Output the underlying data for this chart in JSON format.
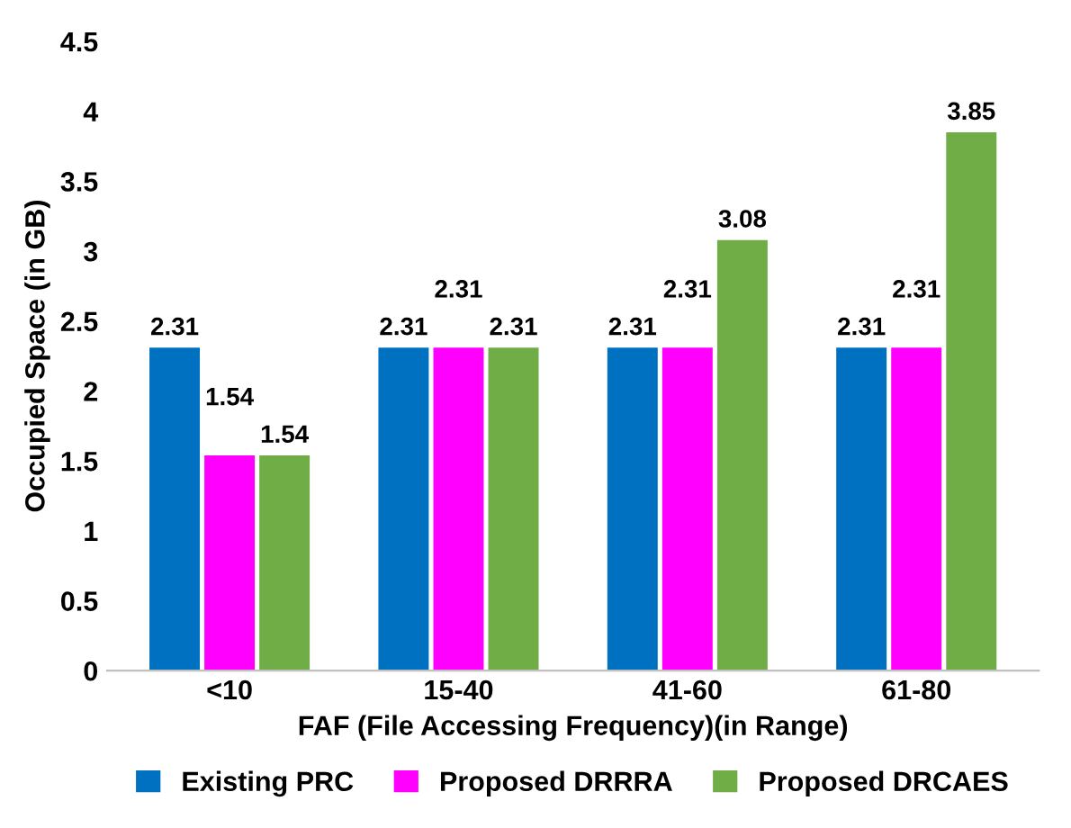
{
  "chart_data": {
    "type": "bar",
    "xlabel": "FAF (File Accessing Frequency)(in Range)",
    "ylabel": "Occupied Space (in GB)",
    "categories": [
      "<10",
      "15-40",
      "41-60",
      "61-80"
    ],
    "series": [
      {
        "name": "Existing PRC",
        "color": "#0070c0",
        "values": [
          2.31,
          2.31,
          2.31,
          2.31
        ]
      },
      {
        "name": "Proposed DRRRA",
        "color": "#ff00ff",
        "values": [
          1.54,
          2.31,
          2.31,
          2.31
        ]
      },
      {
        "name": "Proposed DRCAES",
        "color": "#70ad47",
        "values": [
          1.54,
          2.31,
          3.08,
          3.85
        ]
      }
    ],
    "ylim": [
      0,
      4.5
    ],
    "yticks": [
      0,
      0.5,
      1,
      1.5,
      2,
      2.5,
      3,
      3.5,
      4,
      4.5
    ],
    "grid": false,
    "legend": "bottom",
    "data_labels": true
  }
}
